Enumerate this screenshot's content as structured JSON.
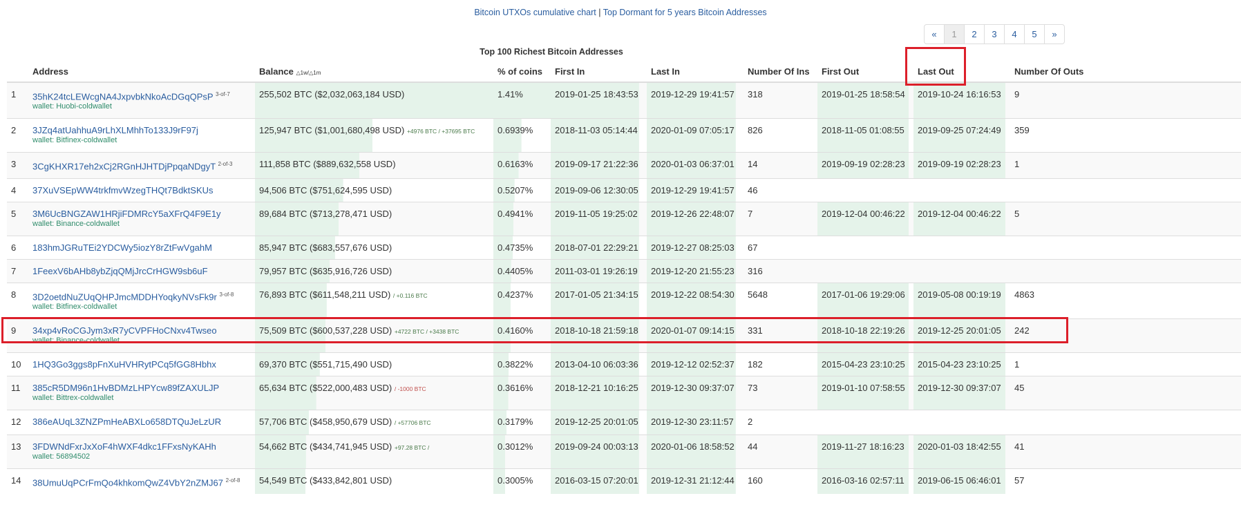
{
  "top_links": {
    "utxo": "Bitcoin UTXOs cumulative chart",
    "separator": "|",
    "dormant": "Top Dormant for 5 years Bitcoin Addresses"
  },
  "pagination": {
    "prev": "«",
    "pages": [
      "1",
      "2",
      "3",
      "4",
      "5"
    ],
    "next": "»",
    "current": "1"
  },
  "title": "Top 100 Richest Bitcoin Addresses",
  "columns": {
    "num": "",
    "address": "Address",
    "balance": "Balance",
    "balance_delta": "△1w/△1m",
    "pct": "% of coins",
    "first_in": "First In",
    "last_in": "Last In",
    "num_ins": "Number Of Ins",
    "first_out": "First Out",
    "last_out": "Last Out",
    "num_outs": "Number Of Outs"
  },
  "highlight_color": "#dc1f2a",
  "rows": [
    {
      "n": "1",
      "address": "35hK24tcLEWcgNA4JxpvbkNkoAcDGqQPsP",
      "sig": "3-of-7",
      "wallet": "wallet: Huobi-coldwallet",
      "balance": "255,502 BTC ($2,032,063,184 USD)",
      "btc": 255502,
      "delta": "",
      "pct": "1.41%",
      "first_in": "2019-01-25 18:43:53",
      "last_in": "2019-12-29 19:41:57",
      "ins": "318",
      "first_out": "2019-01-25 18:58:54",
      "last_out": "2019-10-24 16:16:53",
      "outs": "9"
    },
    {
      "n": "2",
      "address": "3JZq4atUahhuA9rLhXLMhhTo133J9rF97j",
      "sig": "",
      "wallet": "wallet: Bitfinex-coldwallet",
      "balance": "125,947 BTC ($1,001,680,498 USD)",
      "btc": 125947,
      "delta": "+4976 BTC / +37695 BTC",
      "pct": "0.6939%",
      "first_in": "2018-11-03 05:14:44",
      "last_in": "2020-01-09 07:05:17",
      "ins": "826",
      "first_out": "2018-11-05 01:08:55",
      "last_out": "2019-09-25 07:24:49",
      "outs": "359"
    },
    {
      "n": "3",
      "address": "3CgKHXR17eh2xCj2RGnHJHTDjPpqaNDgyT",
      "sig": "2-of-3",
      "wallet": "",
      "balance": "111,858 BTC ($889,632,558 USD)",
      "btc": 111858,
      "delta": "",
      "pct": "0.6163%",
      "first_in": "2019-09-17 21:22:36",
      "last_in": "2020-01-03 06:37:01",
      "ins": "14",
      "first_out": "2019-09-19 02:28:23",
      "last_out": "2019-09-19 02:28:23",
      "outs": "1"
    },
    {
      "n": "4",
      "address": "37XuVSEpWW4trkfmvWzegTHQt7BdktSKUs",
      "sig": "",
      "wallet": "",
      "balance": "94,506 BTC ($751,624,595 USD)",
      "btc": 94506,
      "delta": "",
      "pct": "0.5207%",
      "first_in": "2019-09-06 12:30:05",
      "last_in": "2019-12-29 19:41:57",
      "ins": "46",
      "first_out": "",
      "last_out": "",
      "outs": ""
    },
    {
      "n": "5",
      "address": "3M6UcBNGZAW1HRjiFDMRcY5aXFrQ4F9E1y",
      "sig": "",
      "wallet": "wallet: Binance-coldwallet",
      "balance": "89,684 BTC ($713,278,471 USD)",
      "btc": 89684,
      "delta": "",
      "pct": "0.4941%",
      "first_in": "2019-11-05 19:25:02",
      "last_in": "2019-12-26 22:48:07",
      "ins": "7",
      "first_out": "2019-12-04 00:46:22",
      "last_out": "2019-12-04 00:46:22",
      "outs": "5"
    },
    {
      "n": "6",
      "address": "183hmJGRuTEi2YDCWy5iozY8rZtFwVgahM",
      "sig": "",
      "wallet": "",
      "balance": "85,947 BTC ($683,557,676 USD)",
      "btc": 85947,
      "delta": "",
      "pct": "0.4735%",
      "first_in": "2018-07-01 22:29:21",
      "last_in": "2019-12-27 08:25:03",
      "ins": "67",
      "first_out": "",
      "last_out": "",
      "outs": ""
    },
    {
      "n": "7",
      "address": "1FeexV6bAHb8ybZjqQMjJrcCrHGW9sb6uF",
      "sig": "",
      "wallet": "",
      "balance": "79,957 BTC ($635,916,726 USD)",
      "btc": 79957,
      "delta": "",
      "pct": "0.4405%",
      "first_in": "2011-03-01 19:26:19",
      "last_in": "2019-12-20 21:55:23",
      "ins": "316",
      "first_out": "",
      "last_out": "",
      "outs": ""
    },
    {
      "n": "8",
      "address": "3D2oetdNuZUqQHPJmcMDDHYoqkyNVsFk9r",
      "sig": "3-of-8",
      "wallet": "wallet: Bitfinex-coldwallet",
      "balance": "76,893 BTC ($611,548,211 USD)",
      "btc": 76893,
      "delta": "/ +0.116 BTC",
      "pct": "0.4237%",
      "first_in": "2017-01-05 21:34:15",
      "last_in": "2019-12-22 08:54:30",
      "ins": "5648",
      "first_out": "2017-01-06 19:29:06",
      "last_out": "2019-05-08 00:19:19",
      "outs": "4863"
    },
    {
      "n": "9",
      "address": "34xp4vRoCGJym3xR7yCVPFHoCNxv4Twseo",
      "sig": "",
      "wallet": "wallet: Binance-coldwallet",
      "balance": "75,509 BTC ($600,537,228 USD)",
      "btc": 75509,
      "delta": "+4722 BTC / +3438 BTC",
      "pct": "0.4160%",
      "first_in": "2018-10-18 21:59:18",
      "last_in": "2020-01-07 09:14:15",
      "ins": "331",
      "first_out": "2018-10-18 22:19:26",
      "last_out": "2019-12-25 20:01:05",
      "outs": "242"
    },
    {
      "n": "10",
      "address": "1HQ3Go3ggs8pFnXuHVHRytPCq5fGG8Hbhx",
      "sig": "",
      "wallet": "",
      "balance": "69,370 BTC ($551,715,490 USD)",
      "btc": 69370,
      "delta": "",
      "pct": "0.3822%",
      "first_in": "2013-04-10 06:03:36",
      "last_in": "2019-12-12 02:52:37",
      "ins": "182",
      "first_out": "2015-04-23 23:10:25",
      "last_out": "2015-04-23 23:10:25",
      "outs": "1"
    },
    {
      "n": "11",
      "address": "385cR5DM96n1HvBDMzLHPYcw89fZAXULJP",
      "sig": "",
      "wallet": "wallet: Bittrex-coldwallet",
      "balance": "65,634 BTC ($522,000,483 USD)",
      "btc": 65634,
      "delta": "/ -1000 BTC",
      "neg": true,
      "pct": "0.3616%",
      "first_in": "2018-12-21 10:16:25",
      "last_in": "2019-12-30 09:37:07",
      "ins": "73",
      "first_out": "2019-01-10 07:58:55",
      "last_out": "2019-12-30 09:37:07",
      "outs": "45"
    },
    {
      "n": "12",
      "address": "386eAUqL3ZNZPmHeABXLo658DTQuJeLzUR",
      "sig": "",
      "wallet": "",
      "balance": "57,706 BTC ($458,950,679 USD)",
      "btc": 57706,
      "delta": "/ +57706 BTC",
      "pct": "0.3179%",
      "first_in": "2019-12-25 20:01:05",
      "last_in": "2019-12-30 23:11:57",
      "ins": "2",
      "first_out": "",
      "last_out": "",
      "outs": ""
    },
    {
      "n": "13",
      "address": "3FDWNdFxrJxXoF4hWXF4dkc1FFxsNyKAHh",
      "sig": "",
      "wallet": "wallet: 56894502",
      "balance": "54,662 BTC ($434,741,945 USD)",
      "btc": 54662,
      "delta": "+97.28 BTC /",
      "pct": "0.3012%",
      "first_in": "2019-09-24 00:03:13",
      "last_in": "2020-01-06 18:58:52",
      "ins": "44",
      "first_out": "2019-11-27 18:16:23",
      "last_out": "2020-01-03 18:42:55",
      "outs": "41"
    },
    {
      "n": "14",
      "address": "38UmuUqPCrFmQo4khkomQwZ4VbY2nZMJ67",
      "sig": "2-of-8",
      "wallet": "",
      "balance": "54,549 BTC ($433,842,801 USD)",
      "btc": 54549,
      "delta": "",
      "pct": "0.3005%",
      "first_in": "2016-03-15 07:20:01",
      "last_in": "2019-12-31 21:12:44",
      "ins": "160",
      "first_out": "2016-03-16 02:57:11",
      "last_out": "2019-06-15 06:46:01",
      "outs": "57"
    }
  ]
}
